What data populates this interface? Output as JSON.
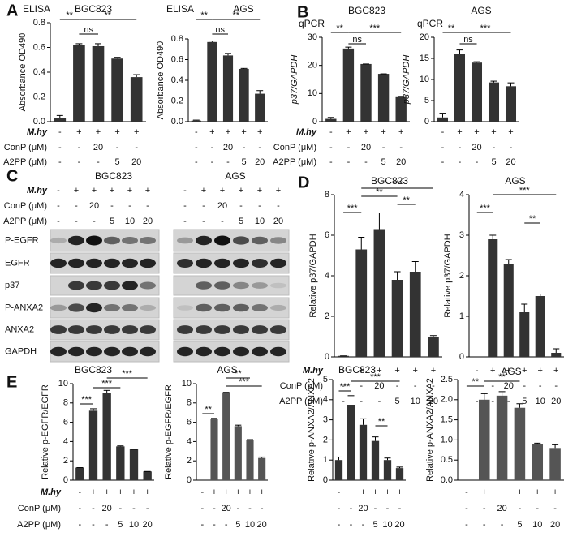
{
  "panels": [
    "A",
    "B",
    "C",
    "D",
    "E"
  ],
  "chart_data": [
    {
      "type": "bar",
      "assay": "ELISA",
      "title": "BGC823",
      "ylabel": "Absorbance OD490",
      "categories": [
        null,
        null,
        null,
        null,
        null
      ],
      "values": [
        0.03,
        0.62,
        0.61,
        0.51,
        0.36
      ],
      "errors": [
        0.02,
        0.01,
        0.02,
        0.01,
        0.02
      ],
      "ylim": [
        0,
        0.8
      ],
      "yticks": [
        {
          "value": 0,
          "label": "0.0"
        },
        0.2,
        0.4,
        0.6,
        0.8
      ],
      "color": "#333333",
      "treatment_labels": [
        "M.hy",
        "ConP (μM)",
        "A2PP (μM)"
      ],
      "treatments": [
        [
          "-",
          "+",
          "+",
          "+",
          "+"
        ],
        [
          "-",
          "-",
          "20",
          "-",
          "-"
        ],
        [
          "-",
          "-",
          "-",
          "5",
          "20"
        ]
      ],
      "annotations": [
        "**",
        "**",
        "ns"
      ]
    },
    {
      "type": "bar",
      "assay": "ELISA",
      "title": "AGS",
      "ylabel": "Absorbance OD490",
      "categories": [
        null,
        null,
        null,
        null,
        null
      ],
      "values": [
        0.01,
        0.77,
        0.64,
        0.51,
        0.27
      ],
      "errors": [
        0.005,
        0.01,
        0.02,
        0.005,
        0.03
      ],
      "ylim": [
        0,
        0.8
      ],
      "yticks": [
        {
          "value": 0,
          "label": "0.0"
        },
        0.2,
        0.4,
        0.6,
        0.8
      ],
      "color": "#333333",
      "treatments": [
        [
          "-",
          "+",
          "+",
          "+",
          "+"
        ],
        [
          "-",
          "-",
          "20",
          "-",
          "-"
        ],
        [
          "-",
          "-",
          "-",
          "5",
          "20"
        ]
      ],
      "annotations": [
        "**",
        "**",
        "ns"
      ]
    },
    {
      "type": "bar",
      "assay": "qPCR",
      "title": "BGC823",
      "ylabel": "p37/GAPDH",
      "categories": [
        null,
        null,
        null,
        null,
        null
      ],
      "values": [
        1,
        26,
        20.5,
        17,
        9
      ],
      "errors": [
        0.5,
        0.5,
        0,
        0,
        0
      ],
      "ylim": [
        0,
        30
      ],
      "yticks": [
        0,
        10,
        20,
        30
      ],
      "color": "#333333",
      "treatment_labels": [
        "M.hy",
        "ConP (μM)",
        "A2PP (μM)"
      ],
      "treatments": [
        [
          "-",
          "+",
          "+",
          "+",
          "+"
        ],
        [
          "-",
          "-",
          "20",
          "-",
          "-"
        ],
        [
          "-",
          "-",
          "-",
          "5",
          "20"
        ]
      ],
      "annotations": [
        "**",
        "ns",
        "***"
      ]
    },
    {
      "type": "bar",
      "assay": "qPCR",
      "title": "AGS",
      "ylabel": "p37/GAPDH",
      "categories": [
        null,
        null,
        null,
        null,
        null
      ],
      "values": [
        1,
        16,
        14,
        9.3,
        8.4
      ],
      "errors": [
        1,
        1,
        0.2,
        0.3,
        0.8
      ],
      "ylim": [
        0,
        20
      ],
      "yticks": [
        0,
        5,
        10,
        15,
        20
      ],
      "color": "#333333",
      "treatments": [
        [
          "-",
          "+",
          "+",
          "+",
          "+"
        ],
        [
          "-",
          "-",
          "20",
          "-",
          "-"
        ],
        [
          "-",
          "-",
          "-",
          "5",
          "20"
        ]
      ],
      "annotations": [
        "**",
        "ns",
        "***"
      ]
    },
    {
      "type": "bar",
      "title": "BGC823",
      "ylabel": "Relative p37/GAPDH",
      "categories": [
        null,
        null,
        null,
        null,
        null,
        null
      ],
      "values": [
        0.05,
        5.3,
        6.3,
        3.8,
        4.2,
        1.0
      ],
      "errors": [
        0,
        0.6,
        0.8,
        0.4,
        0.5,
        0.05
      ],
      "ylim": [
        0,
        8
      ],
      "yticks": [
        0,
        2,
        4,
        6,
        8
      ],
      "color": "#333333",
      "treatment_labels": [
        "M.hy",
        "ConP (μM)",
        "A2PP (μM)"
      ],
      "treatments": [
        [
          "-",
          "+",
          "+",
          "+",
          "+",
          "+"
        ],
        [
          "-",
          "-",
          "20",
          "-",
          "-",
          "-"
        ],
        [
          "-",
          "-",
          "-",
          "5",
          "10",
          "20"
        ]
      ],
      "annotations": [
        "***",
        "***",
        "**",
        "**"
      ]
    },
    {
      "type": "bar",
      "title": "AGS",
      "ylabel": "Relative p37/GAPDH",
      "categories": [
        null,
        null,
        null,
        null,
        null,
        null
      ],
      "values": [
        0,
        2.9,
        2.3,
        1.1,
        1.5,
        0.1
      ],
      "errors": [
        0,
        0.1,
        0.1,
        0.2,
        0.05,
        0.1
      ],
      "ylim": [
        0,
        4
      ],
      "yticks": [
        0,
        1,
        2,
        3,
        4
      ],
      "color": "#333333",
      "treatments": [
        [
          "-",
          "+",
          "+",
          "+",
          "+",
          "+"
        ],
        [
          "-",
          "-",
          "20",
          "-",
          "-",
          "-"
        ],
        [
          "-",
          "-",
          "-",
          "5",
          "10",
          "20"
        ]
      ],
      "annotations": [
        "***",
        "***",
        "**"
      ]
    },
    {
      "type": "bar",
      "title": "BGC823",
      "ylabel": "Relative p-EGFR/EGFR",
      "categories": [
        null,
        null,
        null,
        null,
        null,
        null
      ],
      "values": [
        1.3,
        7.2,
        9.0,
        3.5,
        3.2,
        0.9
      ],
      "errors": [
        0,
        0.2,
        0.3,
        0.05,
        0,
        0
      ],
      "ylim": [
        0,
        10
      ],
      "yticks": [
        0,
        2,
        4,
        6,
        8,
        10
      ],
      "color": "#333333",
      "treatment_labels": [
        "M.hy",
        "ConP (μM)",
        "A2PP (μM)"
      ],
      "treatments": [
        [
          "-",
          "+",
          "+",
          "+",
          "+",
          "+"
        ],
        [
          "-",
          "-",
          "20",
          "-",
          "-",
          "-"
        ],
        [
          "-",
          "-",
          "-",
          "5",
          "10",
          "20"
        ]
      ],
      "annotations": [
        "***",
        "***",
        "***"
      ]
    },
    {
      "type": "bar",
      "title": "AGS",
      "ylabel": "Relative p-EGFR/EGFR",
      "categories": [
        null,
        null,
        null,
        null,
        null,
        null
      ],
      "values": [
        0,
        6.3,
        9.0,
        5.6,
        4.2,
        2.3
      ],
      "errors": [
        0,
        0.1,
        0.1,
        0.1,
        0,
        0.1
      ],
      "ylim": [
        0,
        10
      ],
      "yticks": [
        0,
        2,
        4,
        6,
        8,
        10
      ],
      "color": "#555555",
      "treatments": [
        [
          "-",
          "+",
          "+",
          "+",
          "+",
          "+"
        ],
        [
          "-",
          "-",
          "20",
          "-",
          "-",
          "-"
        ],
        [
          "-",
          "-",
          "-",
          "5",
          "10",
          "20"
        ]
      ],
      "annotations": [
        "**",
        "***",
        "**"
      ]
    },
    {
      "type": "bar",
      "title": "BGC823",
      "ylabel": "Relative p-ANXA2/ANXA2",
      "categories": [
        null,
        null,
        null,
        null,
        null,
        null
      ],
      "values": [
        1.0,
        3.75,
        2.75,
        1.95,
        1.0,
        0.6
      ],
      "errors": [
        0.15,
        0.45,
        0.3,
        0.2,
        0.1,
        0.05
      ],
      "ylim": [
        0,
        5
      ],
      "yticks": [
        0,
        1,
        2,
        3,
        4,
        5
      ],
      "color": "#333333",
      "treatments": [
        [
          "-",
          "+",
          "+",
          "+",
          "+",
          "+"
        ],
        [
          "-",
          "-",
          "20",
          "-",
          "-",
          "-"
        ],
        [
          "-",
          "-",
          "-",
          "5",
          "10",
          "20"
        ]
      ],
      "annotations": [
        "***",
        "***",
        "**"
      ]
    },
    {
      "type": "bar",
      "title": "AGS",
      "ylabel": "Relative p-ANXA2/ANXA2",
      "categories": [
        null,
        null,
        null,
        null,
        null,
        null
      ],
      "values": [
        0,
        2.0,
        2.1,
        1.8,
        0.9,
        0.8
      ],
      "errors": [
        0,
        0.15,
        0.1,
        0.1,
        0.02,
        0.08
      ],
      "ylim": [
        0,
        2.5
      ],
      "yticks": [
        {
          "value": 0,
          "label": "0.0"
        },
        0.5,
        {
          "value": 1,
          "label": "1.0"
        },
        1.5,
        {
          "value": 2,
          "label": "2.0"
        },
        2.5
      ],
      "color": "#555555",
      "treatments": [
        [
          "-",
          "+",
          "+",
          "+",
          "+",
          "+"
        ],
        [
          "-",
          "-",
          "20",
          "-",
          "-",
          "-"
        ],
        [
          "-",
          "-",
          "-",
          "5",
          "10",
          "20"
        ]
      ],
      "annotations": [
        "**",
        "**"
      ]
    }
  ],
  "blot": {
    "groups": [
      "BGC823",
      "AGS"
    ],
    "treatment_labels": [
      "M.hy",
      "ConP (μM)",
      "A2PP (μM)"
    ],
    "treatments": [
      [
        [
          "-",
          "+",
          "+",
          "+",
          "+",
          "+"
        ],
        [
          "-",
          "-",
          "20",
          "-",
          "-",
          "-"
        ],
        [
          "-",
          "-",
          "-",
          "5",
          "10",
          "20"
        ]
      ],
      [
        [
          "-",
          "+",
          "+",
          "+",
          "+",
          "+"
        ],
        [
          "-",
          "-",
          "20",
          "-",
          "-",
          "-"
        ],
        [
          "-",
          "-",
          "-",
          "5",
          "10",
          "20"
        ]
      ]
    ],
    "rows": [
      "P-EGFR",
      "EGFR",
      "p37",
      "P-ANXA2",
      "ANXA2",
      "GAPDH"
    ]
  }
}
